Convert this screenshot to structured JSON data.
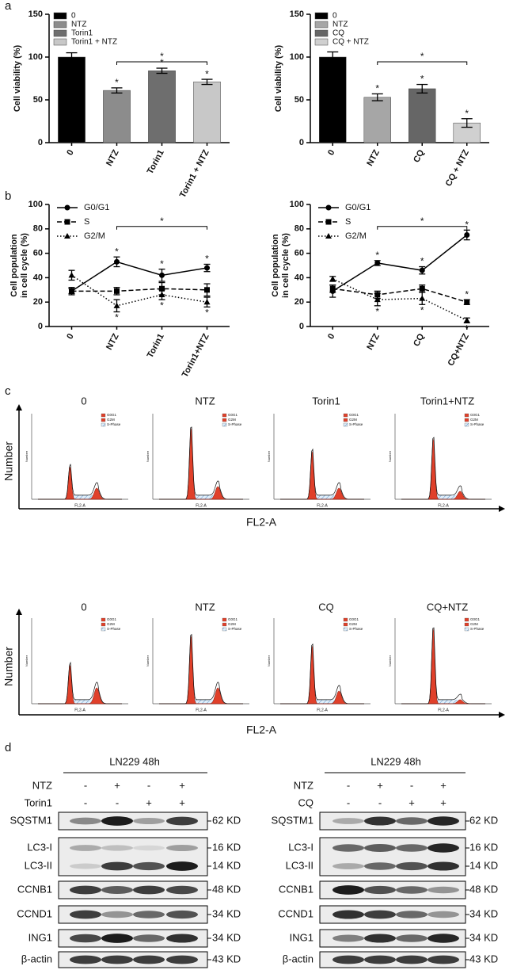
{
  "panel_labels": [
    "a",
    "b",
    "c",
    "d"
  ],
  "chart_data": [
    {
      "type": "bar",
      "y_label": "Cell viability (%)",
      "categories": [
        "0",
        "NTZ",
        "Torin1",
        "Torin1 + NTZ"
      ],
      "values": [
        100,
        61,
        84,
        71
      ],
      "errors": [
        5,
        3,
        3,
        3
      ],
      "significance": [
        null,
        "*",
        "*",
        "*"
      ],
      "bracket_label": "*",
      "colors": [
        "#000000",
        "#8c8c8c",
        "#6e6e6e",
        "#c8c8c8"
      ],
      "legend": "upper left",
      "ylim": [
        0,
        150
      ],
      "yticks": [
        0,
        50,
        100,
        150
      ]
    },
    {
      "type": "bar",
      "y_label": "Cell viability (%)",
      "categories": [
        "0",
        "NTZ",
        "CQ",
        "CQ + NTZ"
      ],
      "values": [
        100,
        53,
        63,
        23
      ],
      "errors": [
        6,
        4,
        5,
        5
      ],
      "significance": [
        null,
        "*",
        "*",
        "*"
      ],
      "bracket_label": "*",
      "colors": [
        "#000000",
        "#a6a6a6",
        "#666666",
        "#d0d0d0"
      ],
      "legend": "upper left",
      "ylim": [
        0,
        150
      ],
      "yticks": [
        0,
        50,
        100,
        150
      ]
    },
    {
      "type": "line",
      "y_label": [
        "Cell population",
        "in cell cycle (%)"
      ],
      "categories": [
        "0",
        "NTZ",
        "Torin1",
        "Torin1+NTZ"
      ],
      "series": [
        {
          "name": "G0/G1",
          "color": "#000000",
          "line_style": "solid",
          "marker": "circle",
          "values": [
            29,
            53,
            42,
            48
          ],
          "errors": [
            2,
            4,
            5,
            3
          ],
          "significance": [
            null,
            "*",
            "*",
            "*"
          ],
          "significance_side": "above"
        },
        {
          "name": "S",
          "color": "#000000",
          "line_style": "dashed",
          "marker": "square",
          "values": [
            29,
            29,
            31,
            30
          ],
          "errors": [
            3,
            3,
            5,
            5
          ]
        },
        {
          "name": "G2/M",
          "color": "#000000",
          "line_style": "dotted",
          "marker": "triangle",
          "values": [
            42,
            17,
            26,
            20
          ],
          "errors": [
            4,
            5,
            4,
            4
          ],
          "significance": [
            null,
            "*",
            "*",
            "*"
          ],
          "significance_side": "below"
        }
      ],
      "bracket_label": "*",
      "legend": "upper left",
      "ylim": [
        0,
        100
      ],
      "yticks": [
        0,
        20,
        40,
        60,
        80,
        100
      ]
    },
    {
      "type": "line",
      "y_label": [
        "Cell population",
        "in cell cycle (%)"
      ],
      "categories": [
        "0",
        "NTZ",
        "CQ",
        "CQ+NTZ"
      ],
      "series": [
        {
          "name": "G0/G1",
          "color": "#000000",
          "line_style": "solid",
          "marker": "circle",
          "values": [
            29,
            52,
            46,
            75
          ],
          "errors": [
            5,
            2,
            3,
            4
          ],
          "significance": [
            null,
            "*",
            "*",
            "*"
          ],
          "significance_side": "above"
        },
        {
          "name": "S",
          "color": "#000000",
          "line_style": "dashed",
          "marker": "square",
          "values": [
            31,
            26,
            31,
            20
          ],
          "errors": [
            3,
            3,
            3,
            2
          ],
          "significance": [
            null,
            null,
            null,
            "*"
          ],
          "significance_side": "above"
        },
        {
          "name": "G2/M",
          "color": "#000000",
          "line_style": "dotted",
          "marker": "triangle",
          "values": [
            39,
            22,
            23,
            5
          ],
          "errors": [
            2,
            5,
            5,
            2
          ],
          "significance": [
            null,
            "*",
            "*",
            "*"
          ],
          "significance_side": "below"
        }
      ],
      "bracket_label": "*",
      "legend": "upper left",
      "ylim": [
        0,
        100
      ],
      "yticks": [
        0,
        20,
        40,
        60,
        80,
        100
      ]
    }
  ],
  "flow_cytometry": {
    "y_label": "Number",
    "x_label": "FL2-A",
    "legend": [
      "G0G1",
      "G2M",
      "S-Phase"
    ],
    "rows": [
      {
        "titles": [
          "0",
          "NTZ",
          "Torin1",
          "Torin1+NTZ"
        ]
      },
      {
        "titles": [
          "0",
          "NTZ",
          "CQ",
          "CQ+NTZ"
        ]
      }
    ]
  },
  "western_blot": [
    {
      "header": "LN229 48h",
      "treatments": [
        {
          "name": "NTZ",
          "lanes": [
            "-",
            "+",
            "-",
            "+"
          ]
        },
        {
          "name": "Torin1",
          "lanes": [
            "-",
            "-",
            "+",
            "+"
          ]
        }
      ],
      "bands": [
        {
          "name": "SQSTM1",
          "size": "62 KD"
        },
        {
          "name": "LC3-I",
          "size": "16 KD"
        },
        {
          "name": "LC3-II",
          "size": "14 KD"
        },
        {
          "name": "CCNB1",
          "size": "48 KD"
        },
        {
          "name": "CCND1",
          "size": "34 KD"
        },
        {
          "name": "ING1",
          "size": "34 KD"
        },
        {
          "name": "β-actin",
          "size": "43 KD"
        }
      ]
    },
    {
      "header": "LN229 48h",
      "treatments": [
        {
          "name": "NTZ",
          "lanes": [
            "-",
            "+",
            "-",
            "+"
          ]
        },
        {
          "name": "CQ",
          "lanes": [
            "-",
            "-",
            "+",
            "+"
          ]
        }
      ],
      "bands": [
        {
          "name": "SQSTM1",
          "size": "62 KD"
        },
        {
          "name": "LC3-I",
          "size": "16 KD"
        },
        {
          "name": "LC3-II",
          "size": "14 KD"
        },
        {
          "name": "CCNB1",
          "size": "48 KD"
        },
        {
          "name": "CCND1",
          "size": "34 KD"
        },
        {
          "name": "ING1",
          "size": "34 KD"
        },
        {
          "name": "β-actin",
          "size": "43 KD"
        }
      ]
    }
  ]
}
